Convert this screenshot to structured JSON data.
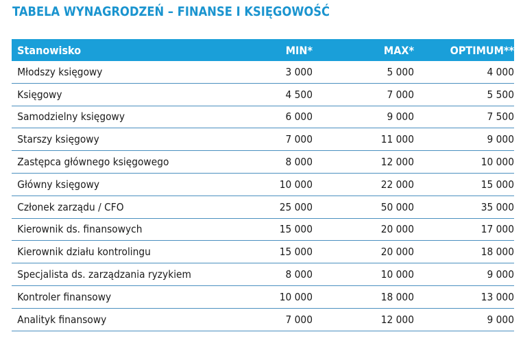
{
  "title": "TABELA WYNAGRODZEŃ – FINANSE I KSIĘGOWOŚĆ",
  "colors": {
    "title": "#1a94cf",
    "header_bg": "#1a9fd9",
    "header_text": "#ffffff",
    "row_separator": "#4a8fbf",
    "body_text": "#1a1a1a"
  },
  "table": {
    "headers": {
      "position": "Stanowisko",
      "min": "MIN*",
      "max": "MAX*",
      "optimum": "OPTIMUM**"
    },
    "rows": [
      {
        "position": "Młodszy księgowy",
        "min": "3 000",
        "max": "5 000",
        "optimum": "4 000"
      },
      {
        "position": "Księgowy",
        "min": "4 500",
        "max": "7 000",
        "optimum": "5 500"
      },
      {
        "position": "Samodzielny księgowy",
        "min": "6 000",
        "max": "9 000",
        "optimum": "7 500"
      },
      {
        "position": "Starszy księgowy",
        "min": "7 000",
        "max": "11 000",
        "optimum": "9 000"
      },
      {
        "position": "Zastępca głównego księgowego",
        "min": "8 000",
        "max": "12 000",
        "optimum": "10 000"
      },
      {
        "position": "Główny księgowy",
        "min": "10 000",
        "max": "22 000",
        "optimum": "15 000"
      },
      {
        "position": "Członek zarządu / CFO",
        "min": "25 000",
        "max": "50 000",
        "optimum": "35 000"
      },
      {
        "position": "Kierownik ds. finansowych",
        "min": "15 000",
        "max": "20 000",
        "optimum": "17 000"
      },
      {
        "position": "Kierownik działu kontrolingu",
        "min": "15 000",
        "max": "20 000",
        "optimum": "18 000"
      },
      {
        "position": "Specjalista ds. zarządzania ryzykiem",
        "min": "8 000",
        "max": "10 000",
        "optimum": "9 000"
      },
      {
        "position": "Kontroler finansowy",
        "min": "10 000",
        "max": "18 000",
        "optimum": "13 000"
      },
      {
        "position": "Analityk finansowy",
        "min": "7 000",
        "max": "12 000",
        "optimum": "9 000"
      }
    ]
  }
}
